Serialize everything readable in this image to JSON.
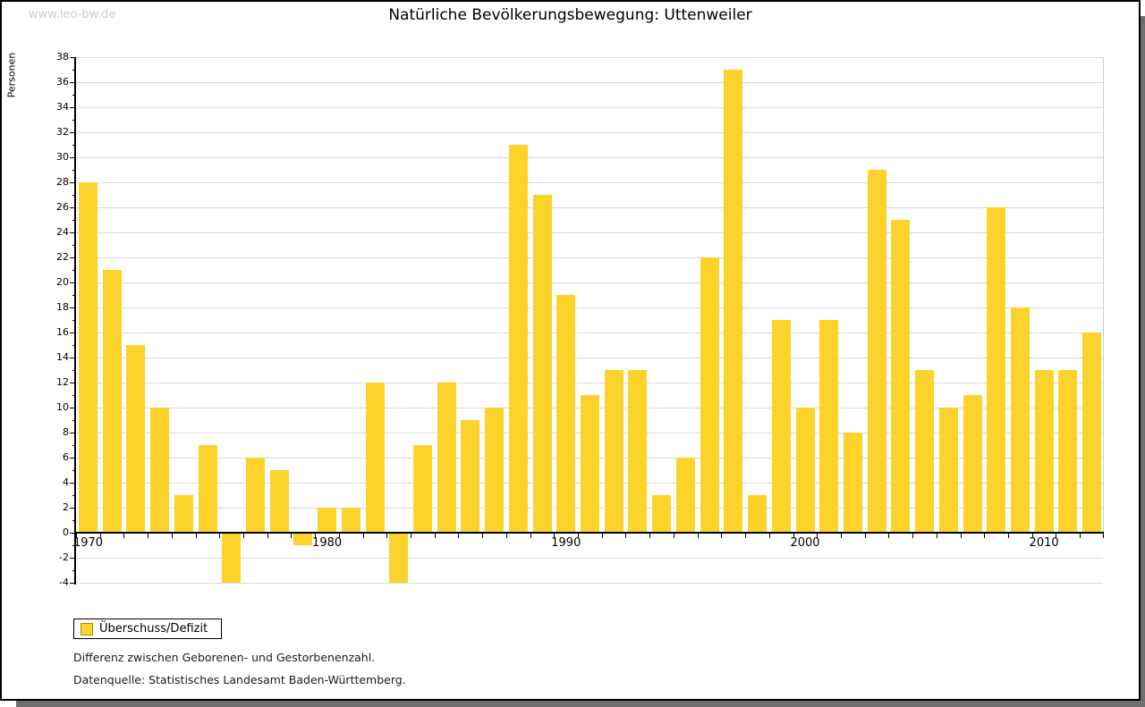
{
  "watermark": "www.leo-bw.de",
  "header": {
    "title": "Natürliche Bevölkerungsbewegung: Uttenweiler"
  },
  "chart_data": {
    "type": "bar",
    "title": "Natürliche Bevölkerungsbewegung: Uttenweiler",
    "xlabel": "",
    "ylabel": "Personen",
    "categories": [
      1970,
      1971,
      1972,
      1973,
      1974,
      1975,
      1976,
      1977,
      1978,
      1979,
      1980,
      1981,
      1982,
      1983,
      1984,
      1985,
      1986,
      1987,
      1988,
      1989,
      1990,
      1991,
      1992,
      1993,
      1994,
      1995,
      1996,
      1997,
      1998,
      1999,
      2000,
      2001,
      2002,
      2003,
      2004,
      2005,
      2006,
      2007,
      2008,
      2009,
      2010,
      2011,
      2012
    ],
    "values": [
      28,
      21,
      15,
      10,
      3,
      7,
      -4,
      6,
      5,
      -1,
      2,
      2,
      12,
      -4,
      7,
      12,
      9,
      10,
      31,
      27,
      19,
      11,
      13,
      13,
      3,
      6,
      22,
      37,
      3,
      17,
      10,
      17,
      8,
      29,
      25,
      13,
      10,
      11,
      26,
      18,
      13,
      13,
      16
    ],
    "series_name": "Überschuss/Defizit",
    "ylim": [
      -4,
      38
    ],
    "y_tick_step": 2,
    "y_tick_labels": [
      38,
      36,
      34,
      32,
      30,
      28,
      26,
      24,
      22,
      20,
      18,
      16,
      14,
      12,
      10,
      8,
      6,
      4,
      2,
      0,
      -2,
      -4
    ],
    "x_tick_labels": [
      "1970",
      "1980",
      "1990",
      "2000",
      "2010"
    ],
    "x_tick_years": [
      1970,
      1980,
      1990,
      2000,
      2010
    ],
    "grid": true,
    "legend_position": "bottom-left",
    "bar_color": "#fcd32b"
  },
  "legend": {
    "label": "Überschuss/Defizit",
    "swatch_color": "#fcd32b"
  },
  "footer": {
    "line1": "Differenz zwischen Geborenen- und Gestorbenenzahl.",
    "line2": "Datenquelle: Statistisches Landesamt Baden-Württemberg."
  }
}
